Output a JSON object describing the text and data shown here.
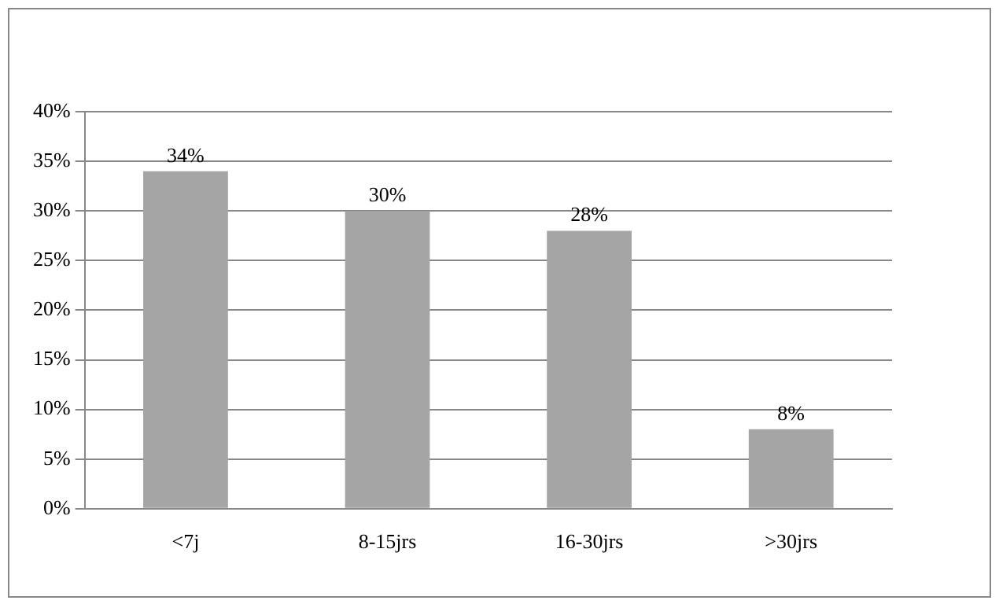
{
  "chart_data": {
    "type": "bar",
    "categories": [
      "<7j",
      "8-15jrs",
      "16-30jrs",
      ">30jrs"
    ],
    "values": [
      34,
      30,
      28,
      8
    ],
    "color": "#a5a5a5",
    "value_labels": [
      "34%",
      "30%",
      "28%",
      "8%"
    ],
    "ylim": [
      0,
      40
    ],
    "yticks": [
      {
        "value": 0,
        "label": "0%"
      },
      {
        "value": 5,
        "label": "5%"
      },
      {
        "value": 10,
        "label": "10%"
      },
      {
        "value": 15,
        "label": "15%"
      },
      {
        "value": 20,
        "label": "20%"
      },
      {
        "value": 25,
        "label": "25%"
      },
      {
        "value": 30,
        "label": "30%"
      },
      {
        "value": 35,
        "label": "35%"
      },
      {
        "value": 40,
        "label": "40%"
      }
    ],
    "grid": "y",
    "legend": false
  }
}
